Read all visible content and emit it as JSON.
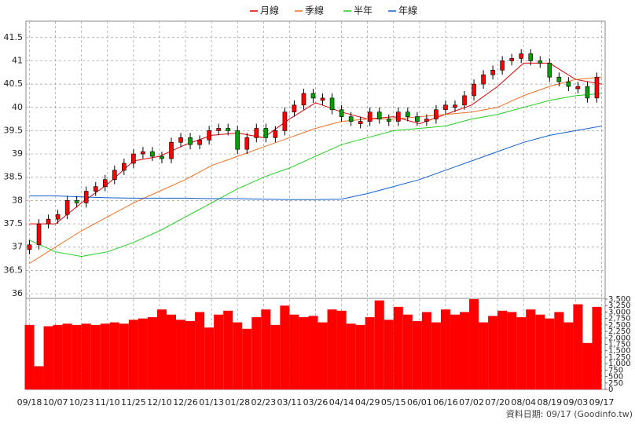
{
  "chart_data": [
    {
      "type": "candlestick",
      "legend": "top",
      "grid": true,
      "xlim": [
        -1.5,
        243.5
      ],
      "xticks": [
        {
          "value": 0,
          "label": "09/18"
        },
        {
          "value": 11,
          "label": "10/07"
        },
        {
          "value": 22,
          "label": "10/23"
        },
        {
          "value": 33,
          "label": "11/10"
        },
        {
          "value": 44,
          "label": "11/25"
        },
        {
          "value": 55,
          "label": "12/10"
        },
        {
          "value": 66,
          "label": "12/26"
        },
        {
          "value": 77,
          "label": "01/13"
        },
        {
          "value": 88,
          "label": "01/28"
        },
        {
          "value": 99,
          "label": "02/23"
        },
        {
          "value": 110,
          "label": "03/11"
        },
        {
          "value": 121,
          "label": "03/26"
        },
        {
          "value": 132,
          "label": "04/14"
        },
        {
          "value": 143,
          "label": "04/29"
        },
        {
          "value": 154,
          "label": "05/15"
        },
        {
          "value": 165,
          "label": "06/01"
        },
        {
          "value": 176,
          "label": "06/16"
        },
        {
          "value": 187,
          "label": "07/02"
        },
        {
          "value": 198,
          "label": "07/20"
        },
        {
          "value": 209,
          "label": "08/04"
        },
        {
          "value": 220,
          "label": "08/19"
        },
        {
          "value": 231,
          "label": "09/03"
        },
        {
          "value": 242,
          "label": "09/17"
        }
      ],
      "ylim": [
        35.9,
        41.85
      ],
      "yticks": [
        36,
        36.5,
        37,
        37.5,
        38,
        38.5,
        39,
        39.5,
        40,
        40.5,
        41,
        41.5
      ],
      "up_color": "#ff0000",
      "down_color": "#00a000",
      "x": [
        0,
        4,
        8,
        12,
        16,
        20,
        24,
        28,
        32,
        36,
        40,
        44,
        48,
        52,
        56,
        60,
        64,
        68,
        72,
        76,
        80,
        84,
        88,
        92,
        96,
        100,
        104,
        108,
        112,
        116,
        120,
        124,
        128,
        132,
        136,
        140,
        144,
        148,
        152,
        156,
        160,
        164,
        168,
        172,
        176,
        180,
        184,
        188,
        192,
        196,
        200,
        204,
        208,
        212,
        216,
        220,
        224,
        228,
        232,
        236,
        240
      ],
      "open": [
        36.95,
        37.05,
        37.5,
        37.6,
        37.7,
        38.0,
        37.95,
        38.2,
        38.3,
        38.45,
        38.65,
        38.8,
        39.0,
        39.05,
        38.95,
        38.9,
        39.25,
        39.35,
        39.2,
        39.3,
        39.5,
        39.55,
        39.5,
        39.1,
        39.35,
        39.55,
        39.35,
        39.5,
        39.9,
        40.05,
        40.3,
        40.15,
        40.2,
        39.95,
        39.8,
        39.65,
        39.7,
        39.9,
        39.75,
        39.7,
        39.9,
        39.8,
        39.7,
        39.75,
        39.95,
        40.0,
        40.05,
        40.25,
        40.5,
        40.7,
        40.8,
        41.0,
        41.05,
        41.15,
        41.0,
        40.95,
        40.65,
        40.55,
        40.4,
        40.45,
        40.2
      ],
      "high": [
        37.15,
        37.6,
        37.7,
        37.8,
        38.1,
        38.1,
        38.3,
        38.4,
        38.55,
        38.75,
        38.9,
        39.1,
        39.15,
        39.15,
        39.05,
        39.35,
        39.45,
        39.45,
        39.4,
        39.6,
        39.65,
        39.65,
        39.6,
        39.45,
        39.65,
        39.65,
        39.6,
        40.0,
        40.15,
        40.4,
        40.4,
        40.3,
        40.3,
        40.05,
        39.9,
        39.8,
        40.0,
        40.0,
        39.85,
        40.0,
        40.0,
        39.9,
        39.85,
        40.05,
        40.15,
        40.15,
        40.35,
        40.6,
        40.8,
        40.9,
        41.1,
        41.15,
        41.25,
        41.25,
        41.1,
        41.05,
        40.75,
        40.65,
        40.55,
        40.55,
        40.75
      ],
      "low": [
        36.85,
        36.95,
        37.4,
        37.5,
        37.6,
        37.85,
        37.85,
        38.1,
        38.2,
        38.35,
        38.55,
        38.7,
        38.9,
        38.85,
        38.8,
        38.8,
        39.15,
        39.1,
        39.1,
        39.2,
        39.4,
        39.4,
        39.0,
        39.0,
        39.25,
        39.25,
        39.25,
        39.4,
        39.8,
        39.95,
        40.1,
        40.05,
        39.85,
        39.7,
        39.6,
        39.55,
        39.6,
        39.65,
        39.6,
        39.6,
        39.7,
        39.6,
        39.6,
        39.65,
        39.85,
        39.9,
        39.95,
        40.15,
        40.4,
        40.6,
        40.7,
        40.9,
        40.95,
        40.9,
        40.85,
        40.55,
        40.45,
        40.35,
        40.3,
        40.1,
        40.1
      ],
      "close": [
        37.05,
        37.5,
        37.6,
        37.7,
        38.0,
        37.95,
        38.2,
        38.3,
        38.45,
        38.65,
        38.8,
        39.0,
        39.05,
        38.95,
        38.9,
        39.25,
        39.35,
        39.2,
        39.3,
        39.5,
        39.55,
        39.5,
        39.1,
        39.35,
        39.55,
        39.35,
        39.5,
        39.9,
        40.05,
        40.3,
        40.2,
        40.2,
        39.95,
        39.8,
        39.7,
        39.7,
        39.9,
        39.75,
        39.7,
        39.9,
        39.8,
        39.7,
        39.75,
        39.95,
        40.05,
        40.05,
        40.25,
        40.5,
        40.7,
        40.8,
        41.0,
        41.05,
        41.15,
        41.0,
        40.95,
        40.65,
        40.55,
        40.45,
        40.45,
        40.2,
        40.65
      ],
      "series": [
        {
          "name": "月線",
          "color": "#e00000",
          "x": [
            0,
            11,
            22,
            33,
            44,
            55,
            66,
            77,
            88,
            99,
            110,
            121,
            132,
            143,
            154,
            165,
            176,
            187,
            198,
            209,
            220,
            231,
            242
          ],
          "values": [
            37.5,
            37.5,
            37.95,
            38.35,
            38.85,
            38.95,
            39.2,
            39.4,
            39.45,
            39.35,
            39.75,
            40.1,
            39.9,
            39.75,
            39.8,
            39.65,
            39.85,
            40.05,
            40.45,
            40.95,
            40.95,
            40.6,
            40.5
          ]
        },
        {
          "name": "季線",
          "color": "#f07020",
          "x": [
            0,
            11,
            22,
            33,
            44,
            55,
            66,
            77,
            88,
            99,
            110,
            121,
            132,
            143,
            154,
            165,
            176,
            187,
            198,
            209,
            220,
            231,
            242
          ],
          "values": [
            36.65,
            37.0,
            37.35,
            37.65,
            37.95,
            38.2,
            38.45,
            38.75,
            38.95,
            39.15,
            39.35,
            39.55,
            39.7,
            39.75,
            39.75,
            39.8,
            39.85,
            39.9,
            40.0,
            40.25,
            40.45,
            40.6,
            40.65
          ]
        },
        {
          "name": "半年",
          "color": "#20d020",
          "x": [
            0,
            11,
            22,
            33,
            44,
            55,
            66,
            77,
            88,
            99,
            110,
            121,
            132,
            143,
            154,
            165,
            176,
            187,
            198,
            209,
            220,
            231,
            242
          ],
          "values": [
            37.15,
            36.9,
            36.8,
            36.9,
            37.1,
            37.35,
            37.65,
            37.95,
            38.25,
            38.5,
            38.7,
            38.95,
            39.2,
            39.35,
            39.5,
            39.55,
            39.6,
            39.75,
            39.85,
            40.0,
            40.15,
            40.25,
            40.3
          ]
        },
        {
          "name": "年線",
          "color": "#1060d0",
          "x": [
            0,
            11,
            22,
            33,
            44,
            55,
            66,
            77,
            88,
            99,
            110,
            121,
            132,
            143,
            154,
            165,
            176,
            187,
            198,
            209,
            220,
            231,
            242
          ],
          "values": [
            38.1,
            38.1,
            38.08,
            38.06,
            38.05,
            38.05,
            38.05,
            38.04,
            38.04,
            38.03,
            38.02,
            38.02,
            38.03,
            38.15,
            38.3,
            38.45,
            38.65,
            38.85,
            39.05,
            39.25,
            39.4,
            39.5,
            39.6
          ]
        }
      ]
    },
    {
      "type": "bar",
      "color": "#ff0000",
      "ylim": [
        0,
        3530
      ],
      "yticks": [
        0,
        250,
        500,
        750,
        {
          "value": 1000,
          "label": "1,000"
        },
        {
          "value": 1250,
          "label": "1,250"
        },
        {
          "value": 1500,
          "label": "1,500"
        },
        {
          "value": 1750,
          "label": "1,750"
        },
        {
          "value": 2000,
          "label": "2,000"
        },
        {
          "value": 2250,
          "label": "2,250"
        },
        {
          "value": 2500,
          "label": "2,500"
        },
        {
          "value": 2750,
          "label": "2,750"
        },
        {
          "value": 3000,
          "label": "3,000"
        },
        {
          "value": 3250,
          "label": "3,250"
        },
        {
          "value": 3500,
          "label": "3,500"
        }
      ],
      "values": [
        2500,
        900,
        2450,
        2500,
        2550,
        2500,
        2550,
        2500,
        2550,
        2600,
        2550,
        2700,
        2750,
        2800,
        3100,
        2900,
        2700,
        2650,
        3000,
        2400,
        2900,
        3050,
        2600,
        2350,
        2800,
        3100,
        2500,
        3250,
        2900,
        2800,
        2850,
        2600,
        3100,
        3050,
        2550,
        2500,
        2800,
        3450,
        2700,
        3200,
        2900,
        2650,
        3000,
        2600,
        3100,
        2900,
        3000,
        3500,
        2600,
        2850,
        3050,
        3000,
        2800,
        3100,
        2900,
        2750,
        3000,
        2600,
        3300,
        1800,
        3200
      ],
      "footer": "資料日期: 09/17  (Goodinfo.tw)"
    }
  ]
}
